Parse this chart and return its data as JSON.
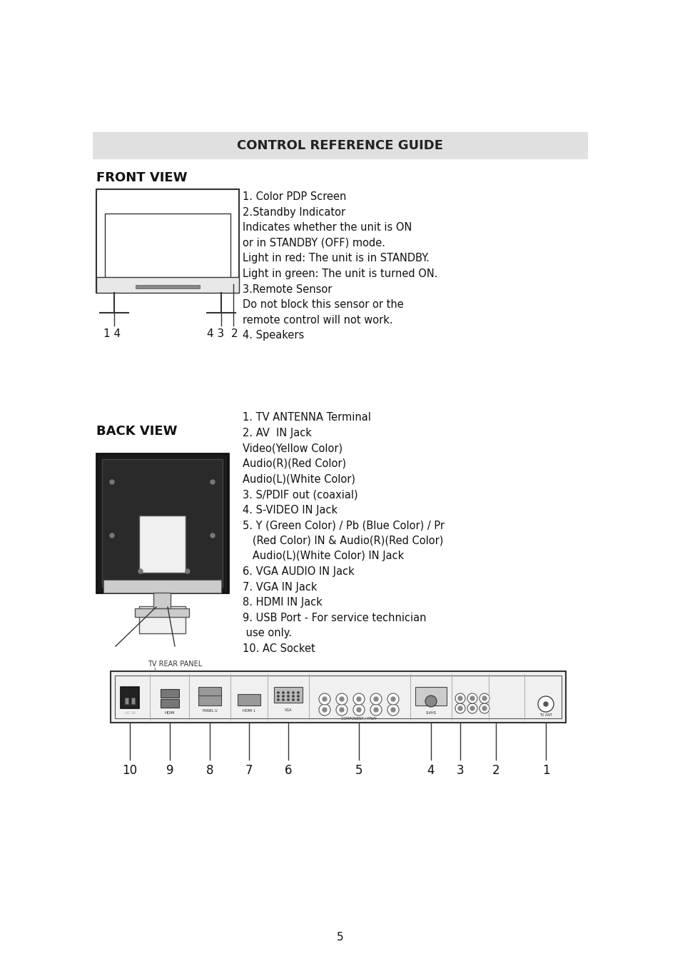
{
  "bg_color": "#ffffff",
  "header_bg": "#e0e0e0",
  "header_text": "CONTROL REFERENCE GUIDE",
  "front_view_title": "FRONT VIEW",
  "back_view_title": "BACK VIEW",
  "front_labels": "1. Color PDP Screen\n2.Standby Indicator\nIndicates whether the unit is ON\nor in STANDBY (OFF) mode.\nLight in red: The unit is in STANDBY.\nLight in green: The unit is turned ON.\n3.Remote Sensor\nDo not block this sensor or the\nremote control will not work.\n4. Speakers",
  "back_labels": "1. TV ANTENNA Terminal\n2. AV  IN Jack\nVideo(Yellow Color)\nAudio(R)(Red Color)\nAudio(L)(White Color)\n3. S/PDIF out (coaxial)\n4. S-VIDEO IN Jack\n5. Y (Green Color) / Pb (Blue Color) / Pr\n   (Red Color) IN & Audio(R)(Red Color)\n   Audio(L)(White Color) IN Jack\n6. VGA AUDIO IN Jack\n7. VGA IN Jack\n8. HDMI IN Jack\n9. USB Port - For service technician\n use only.\n10. AC Socket",
  "tv_rear_panel": "TV REAR PANEL",
  "page_num": "5"
}
